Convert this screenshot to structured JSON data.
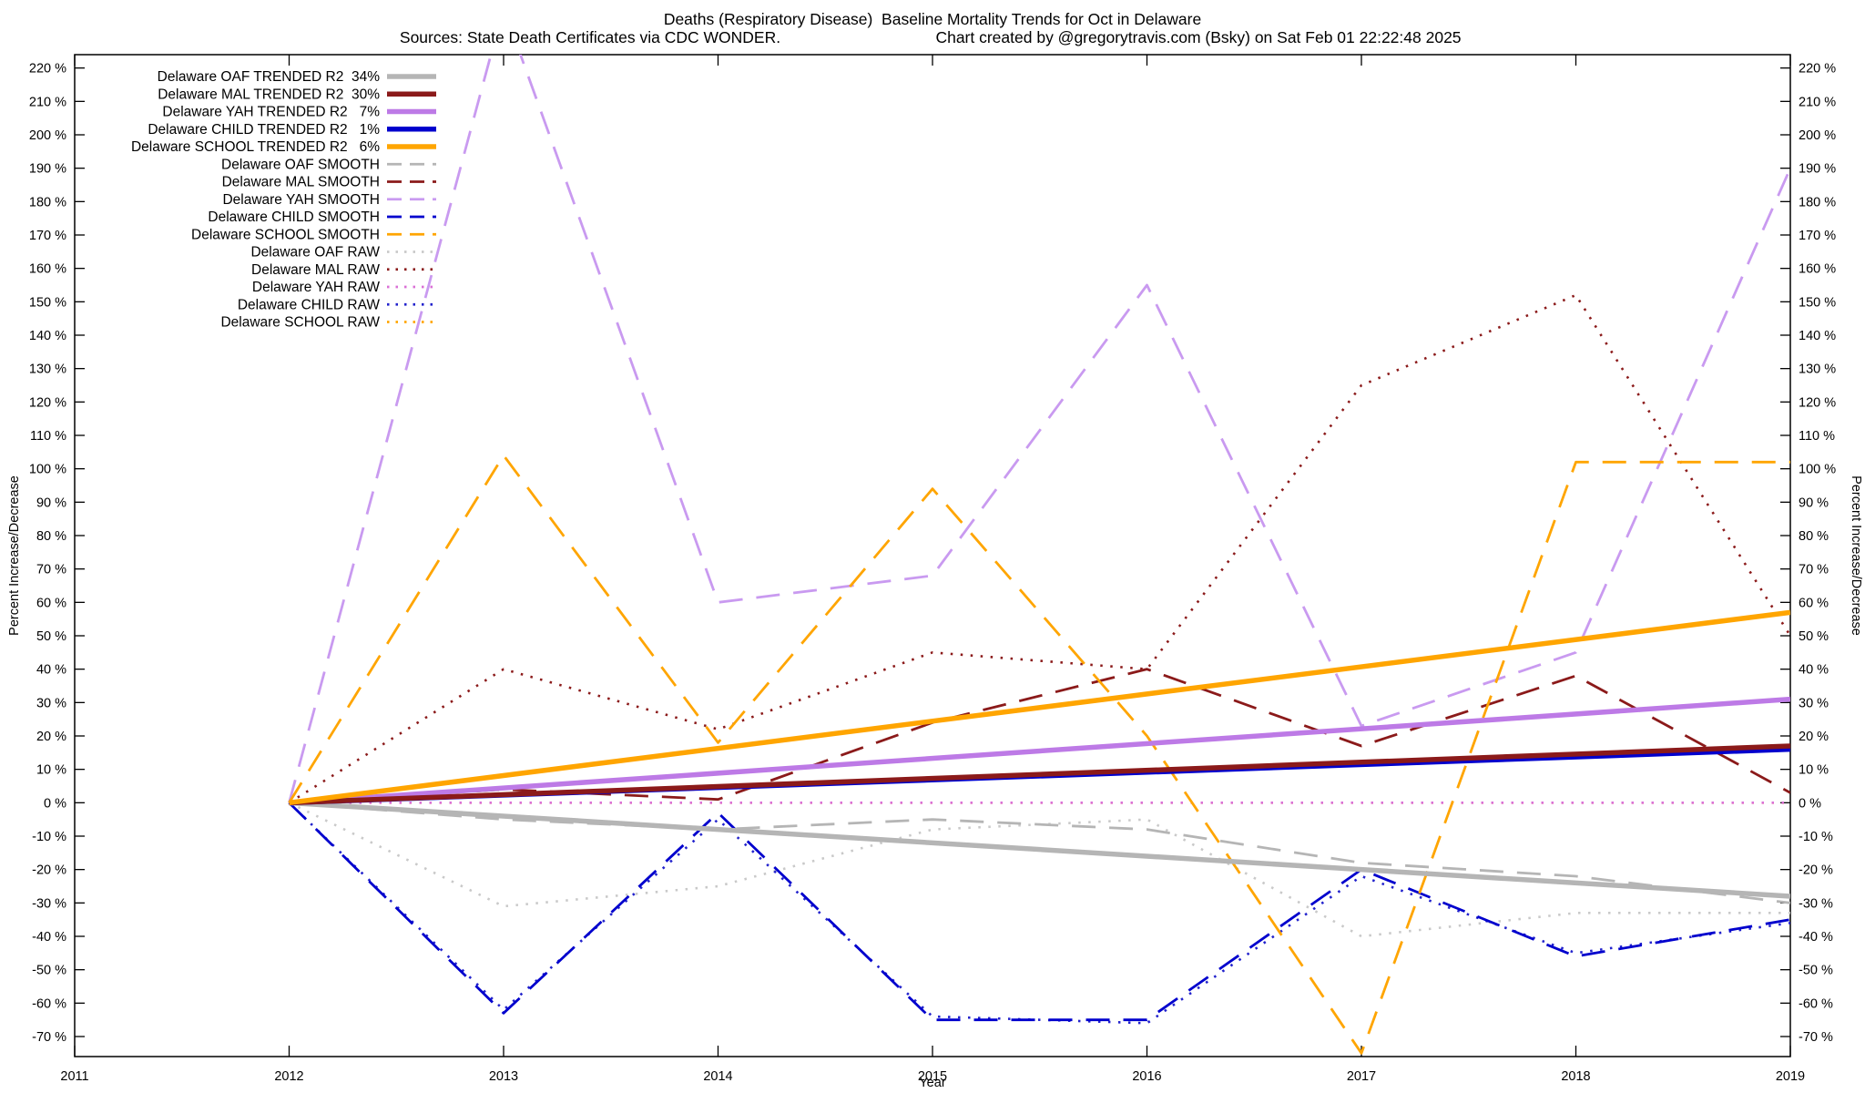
{
  "chart_data": {
    "type": "line",
    "title": "Deaths (Respiratory Disease)  Baseline Mortality Trends for Oct in Delaware",
    "source": "Sources: State Death Certificates via CDC WONDER.",
    "credit": "Chart created by @gregorytravis.com (Bsky) on Sat Feb 01 22:22:48 2025",
    "xlabel": "Year",
    "ylabel_left": "Percent Increase/Decrease",
    "ylabel_right": "Percent Increase/Decrease",
    "xlim": [
      2011,
      2019
    ],
    "ylim": [
      -76,
      224
    ],
    "x_ticks": [
      2011,
      2012,
      2013,
      2014,
      2015,
      2016,
      2017,
      2018,
      2019
    ],
    "y_ticks": {
      "min": -70,
      "max": 220,
      "step": 10,
      "suffix": " %"
    },
    "grid": false,
    "legend_position": "top-left",
    "series": [
      {
        "name": "Delaware OAF TRENDED R2  34%",
        "color": "#b5b5b5",
        "style": "solid",
        "width": 5.5,
        "z": 31,
        "x": [
          2012,
          2019
        ],
        "y": [
          0,
          -28
        ]
      },
      {
        "name": "Delaware MAL TRENDED R2  30%",
        "color": "#8b1a1a",
        "style": "solid",
        "width": 5.5,
        "z": 34,
        "x": [
          2012,
          2019
        ],
        "y": [
          0,
          17
        ]
      },
      {
        "name": "Delaware YAH TRENDED R2   7%",
        "color": "#bd7ae6",
        "style": "solid",
        "width": 5.5,
        "z": 32,
        "x": [
          2012,
          2019
        ],
        "y": [
          0,
          31
        ]
      },
      {
        "name": "Delaware CHILD TRENDED R2   1%",
        "color": "#0000cd",
        "style": "solid",
        "width": 5.5,
        "z": 33,
        "x": [
          2012,
          2019
        ],
        "y": [
          0,
          16
        ]
      },
      {
        "name": "Delaware SCHOOL TRENDED R2   6%",
        "color": "#ffa500",
        "style": "solid",
        "width": 5.5,
        "z": 35,
        "x": [
          2012,
          2019
        ],
        "y": [
          0,
          57
        ]
      },
      {
        "name": "Delaware OAF SMOOTH",
        "color": "#b5b5b5",
        "style": "dashed",
        "width": 2.8,
        "z": 21,
        "x": [
          2012,
          2013,
          2014,
          2015,
          2016,
          2017,
          2018,
          2019
        ],
        "y": [
          0,
          -5,
          -8,
          -5,
          -8,
          -18,
          -22,
          -30
        ]
      },
      {
        "name": "Delaware MAL SMOOTH",
        "color": "#8b1a1a",
        "style": "dashed",
        "width": 2.8,
        "z": 24,
        "x": [
          2012,
          2013,
          2014,
          2015,
          2016,
          2017,
          2018,
          2019
        ],
        "y": [
          0,
          4,
          1,
          24,
          40,
          17,
          38,
          3
        ]
      },
      {
        "name": "Delaware YAH SMOOTH",
        "color": "#c99af0",
        "style": "dashed",
        "width": 2.8,
        "z": 22,
        "x": [
          2012,
          2013,
          2014,
          2015,
          2016,
          2017,
          2018,
          2019
        ],
        "y": [
          0,
          238,
          60,
          68,
          155,
          23,
          45,
          190
        ]
      },
      {
        "name": "Delaware CHILD SMOOTH",
        "color": "#0000cd",
        "style": "dashed",
        "width": 2.8,
        "z": 23,
        "x": [
          2012,
          2013,
          2014,
          2015,
          2016,
          2017,
          2018,
          2019
        ],
        "y": [
          0,
          -63,
          -3,
          -65,
          -65,
          -20,
          -46,
          -35
        ]
      },
      {
        "name": "Delaware SCHOOL SMOOTH",
        "color": "#ffa500",
        "style": "dashed",
        "width": 2.8,
        "z": 25,
        "x": [
          2012,
          2013,
          2014,
          2015,
          2016,
          2017,
          2018,
          2019
        ],
        "y": [
          0,
          104,
          18,
          94,
          20,
          -75,
          102,
          102
        ]
      },
      {
        "name": "Delaware OAF RAW",
        "color": "#c9c9c9",
        "style": "dotted",
        "width": 2.6,
        "z": 11,
        "x": [
          2012,
          2013,
          2014,
          2015,
          2016,
          2017,
          2018,
          2019
        ],
        "y": [
          0,
          -31,
          -25,
          -8,
          -5,
          -40,
          -33,
          -33
        ]
      },
      {
        "name": "Delaware MAL RAW",
        "color": "#8b1a1a",
        "style": "dotted",
        "width": 2.6,
        "z": 14,
        "x": [
          2012,
          2013,
          2014,
          2015,
          2016,
          2017,
          2018,
          2019
        ],
        "y": [
          0,
          40,
          22,
          45,
          40,
          125,
          152,
          50
        ]
      },
      {
        "name": "Delaware YAH RAW",
        "color": "#da70d6",
        "style": "dotted",
        "width": 2.6,
        "z": 15,
        "x": [
          2012,
          2013,
          2014,
          2015,
          2016,
          2017,
          2018,
          2019
        ],
        "y": [
          0,
          0,
          0,
          0,
          0,
          0,
          0,
          0
        ]
      },
      {
        "name": "Delaware CHILD RAW",
        "color": "#2222cc",
        "style": "dotted",
        "width": 2.6,
        "z": 13,
        "x": [
          2012,
          2013,
          2014,
          2015,
          2016,
          2017,
          2018,
          2019
        ],
        "y": [
          0,
          -62,
          -5,
          -64,
          -66,
          -22,
          -45,
          -36
        ]
      },
      {
        "name": "Delaware SCHOOL RAW",
        "color": "#ffa500",
        "style": "dotted",
        "width": 2.6,
        "z": 12,
        "x": [
          2012,
          2013,
          2014,
          2015,
          2016,
          2017,
          2018,
          2019
        ],
        "y": [
          0,
          0,
          0,
          0,
          0,
          0,
          0,
          0
        ]
      }
    ]
  }
}
